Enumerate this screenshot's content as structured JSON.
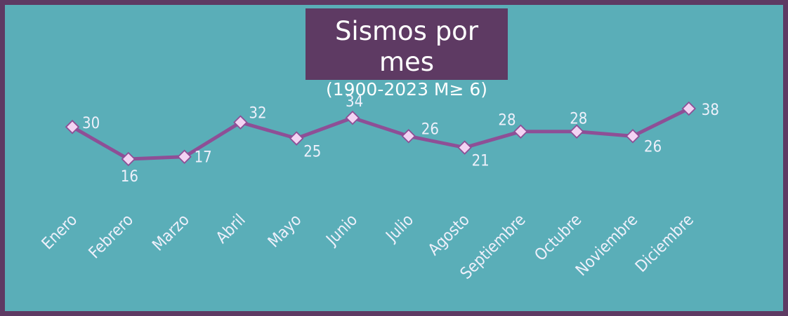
{
  "chart_data": {
    "type": "line",
    "title": "Sismos por mes",
    "subtitle": "(1900-2023 M≥ 6)",
    "categories": [
      "Enero",
      "Febrero",
      "Marzo",
      "Abril",
      "Mayo",
      "Junio",
      "Julio",
      "Agosto",
      "Septiembre",
      "Octubre",
      "Noviembre",
      "Diciembre"
    ],
    "series": [
      {
        "values": [
          30,
          16,
          17,
          32,
          25,
          34,
          26,
          21,
          28,
          28,
          26,
          38
        ]
      }
    ],
    "xlabel": "",
    "ylabel": "",
    "grid": false,
    "legend": "none",
    "data_labels": true
  },
  "colors": {
    "frame": "#5e3a63",
    "background": "#5aaeb8",
    "line": "#8e4f96",
    "marker_fill": "#f3d3f3",
    "marker_stroke": "#8e4f96",
    "label_text": "#eef0fb",
    "title_box": "#5e3a63",
    "title_text": "#ffffff"
  }
}
